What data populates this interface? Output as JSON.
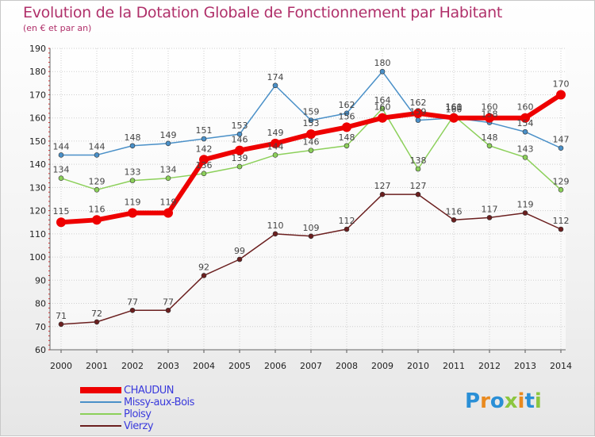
{
  "title": "Evolution de la Dotation Globale de Fonctionnement par Habitant",
  "subtitle": "(en € et par an)",
  "logo": {
    "text": "Proxiti",
    "letters": [
      {
        "ch": "P",
        "color": "#2a8fd6"
      },
      {
        "ch": "r",
        "color": "#e98a1f"
      },
      {
        "ch": "o",
        "color": "#2a8fd6"
      },
      {
        "ch": "x",
        "color": "#8cc63f"
      },
      {
        "ch": "i",
        "color": "#e98a1f"
      },
      {
        "ch": "t",
        "color": "#2a8fd6"
      },
      {
        "ch": "i",
        "color": "#8cc63f"
      }
    ]
  },
  "chart_data": {
    "type": "line",
    "title": "Evolution de la Dotation Globale de Fonctionnement par Habitant",
    "ylabel": "(en € et par an)",
    "xlabel": "",
    "ylim": [
      60,
      190
    ],
    "yticks": [
      60,
      70,
      80,
      90,
      100,
      110,
      120,
      130,
      140,
      150,
      160,
      170,
      180,
      190
    ],
    "categories": [
      "2000",
      "2001",
      "2002",
      "2003",
      "2004",
      "2005",
      "2006",
      "2007",
      "2008",
      "2009",
      "2010",
      "2011",
      "2012",
      "2013",
      "2014"
    ],
    "grid": true,
    "legend_position": "bottom-left",
    "series": [
      {
        "name": "Missy-aux-Bois",
        "color": "#4a90c8",
        "width": 1.5,
        "marker": 3,
        "values": [
          144,
          144,
          148,
          149,
          151,
          153,
          174,
          159,
          162,
          180,
          159,
          160,
          158,
          154,
          147
        ]
      },
      {
        "name": "Ploisy",
        "color": "#8cd05a",
        "width": 1.5,
        "marker": 3,
        "values": [
          134,
          129,
          133,
          134,
          136,
          139,
          144,
          146,
          148,
          164,
          138,
          161,
          148,
          143,
          129
        ]
      },
      {
        "name": "Vierzy",
        "color": "#6b1f1f",
        "width": 1.5,
        "marker": 3,
        "values": [
          71,
          72,
          77,
          77,
          92,
          99,
          110,
          109,
          112,
          127,
          127,
          116,
          117,
          119,
          112
        ]
      },
      {
        "name": "CHAUDUN",
        "color": "#ee0000",
        "width": 6,
        "marker": 6,
        "values": [
          115,
          116,
          119,
          119,
          142,
          146,
          149,
          153,
          156,
          160,
          162,
          160,
          160,
          160,
          170
        ]
      }
    ],
    "legend_order": [
      "CHAUDUN",
      "Missy-aux-Bois",
      "Ploisy",
      "Vierzy"
    ]
  }
}
